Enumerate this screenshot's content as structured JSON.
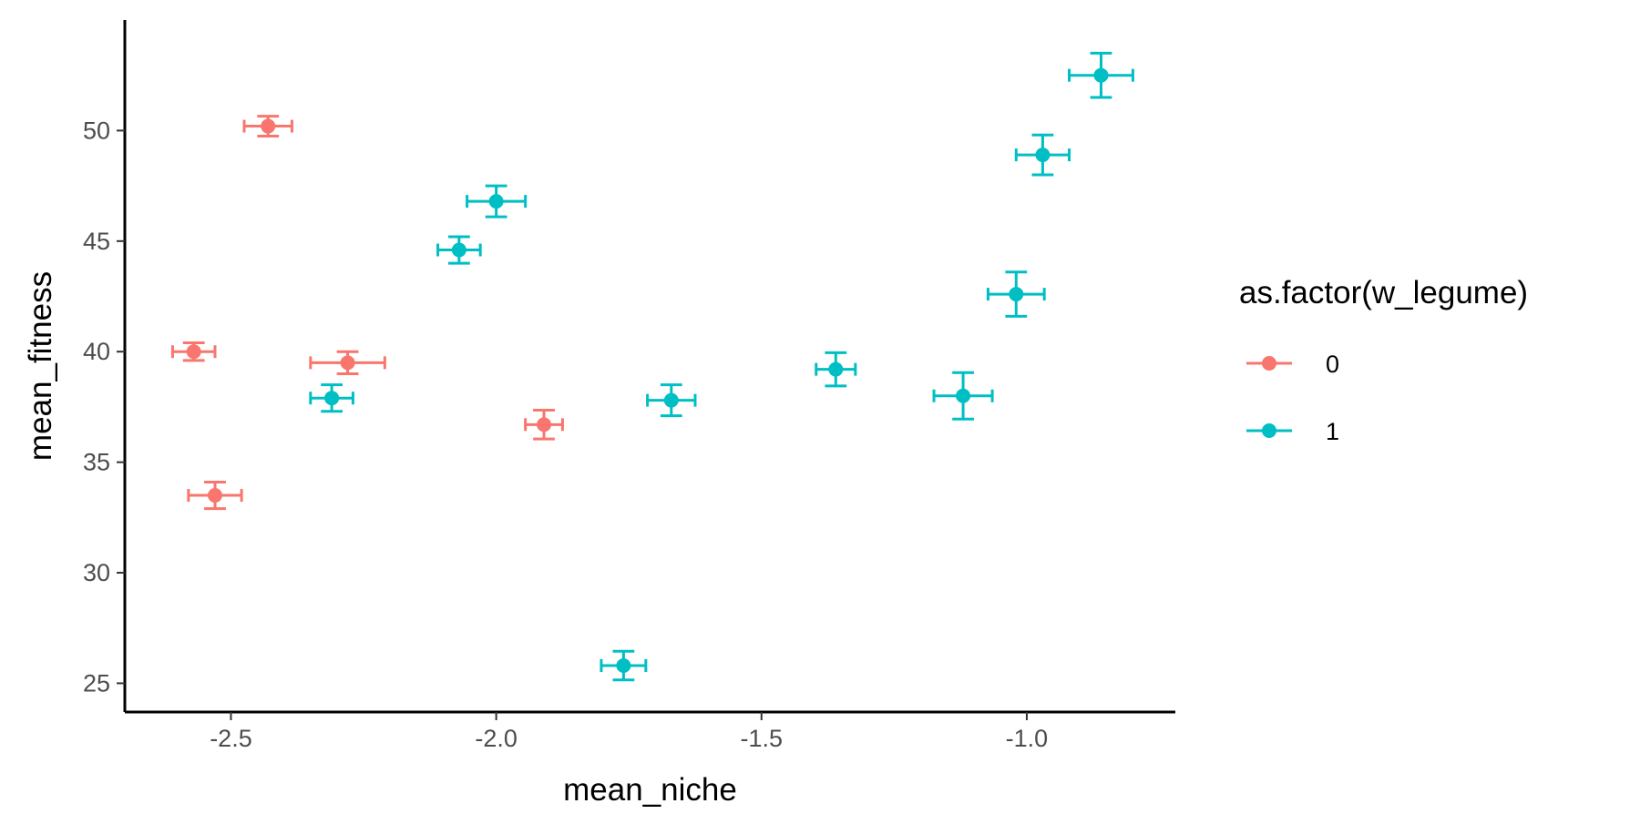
{
  "chart_data": {
    "type": "scatter",
    "title": "",
    "xlabel": "mean_niche",
    "ylabel": "mean_fitness",
    "xlim": [
      -2.7,
      -0.72
    ],
    "ylim": [
      23.7,
      55.0
    ],
    "x_ticks": [
      -2.5,
      -2.0,
      -1.5,
      -1.0
    ],
    "x_tick_labels": [
      "-2.5",
      "-2.0",
      "-1.5",
      "-1.0"
    ],
    "y_ticks": [
      25,
      30,
      35,
      40,
      45,
      50
    ],
    "y_tick_labels": [
      "25",
      "30",
      "35",
      "40",
      "45",
      "50"
    ],
    "grid": false,
    "error_bars": "horizontal and vertical",
    "legend": {
      "title": "as.factor(w_legume)",
      "placement": "right"
    },
    "series": [
      {
        "name": "0",
        "color": "#F8766D",
        "points": [
          {
            "x": -2.43,
            "y": 50.2,
            "xerr": 0.045,
            "yerr": 0.45
          },
          {
            "x": -2.57,
            "y": 40.0,
            "xerr": 0.04,
            "yerr": 0.4
          },
          {
            "x": -2.28,
            "y": 39.5,
            "xerr": 0.07,
            "yerr": 0.5
          },
          {
            "x": -1.91,
            "y": 36.7,
            "xerr": 0.035,
            "yerr": 0.65
          },
          {
            "x": -2.53,
            "y": 33.5,
            "xerr": 0.05,
            "yerr": 0.6
          }
        ]
      },
      {
        "name": "1",
        "color": "#00BFC4",
        "points": [
          {
            "x": -0.86,
            "y": 52.5,
            "xerr": 0.06,
            "yerr": 1.0
          },
          {
            "x": -0.97,
            "y": 48.9,
            "xerr": 0.05,
            "yerr": 0.9
          },
          {
            "x": -2.0,
            "y": 46.8,
            "xerr": 0.055,
            "yerr": 0.7
          },
          {
            "x": -2.07,
            "y": 44.6,
            "xerr": 0.04,
            "yerr": 0.6
          },
          {
            "x": -1.02,
            "y": 42.6,
            "xerr": 0.053,
            "yerr": 1.0
          },
          {
            "x": -1.36,
            "y": 39.2,
            "xerr": 0.037,
            "yerr": 0.75
          },
          {
            "x": -1.12,
            "y": 38.0,
            "xerr": 0.055,
            "yerr": 1.05
          },
          {
            "x": -2.31,
            "y": 37.9,
            "xerr": 0.04,
            "yerr": 0.6
          },
          {
            "x": -1.67,
            "y": 37.8,
            "xerr": 0.045,
            "yerr": 0.7
          },
          {
            "x": -1.76,
            "y": 25.8,
            "xerr": 0.042,
            "yerr": 0.65
          }
        ]
      }
    ]
  }
}
